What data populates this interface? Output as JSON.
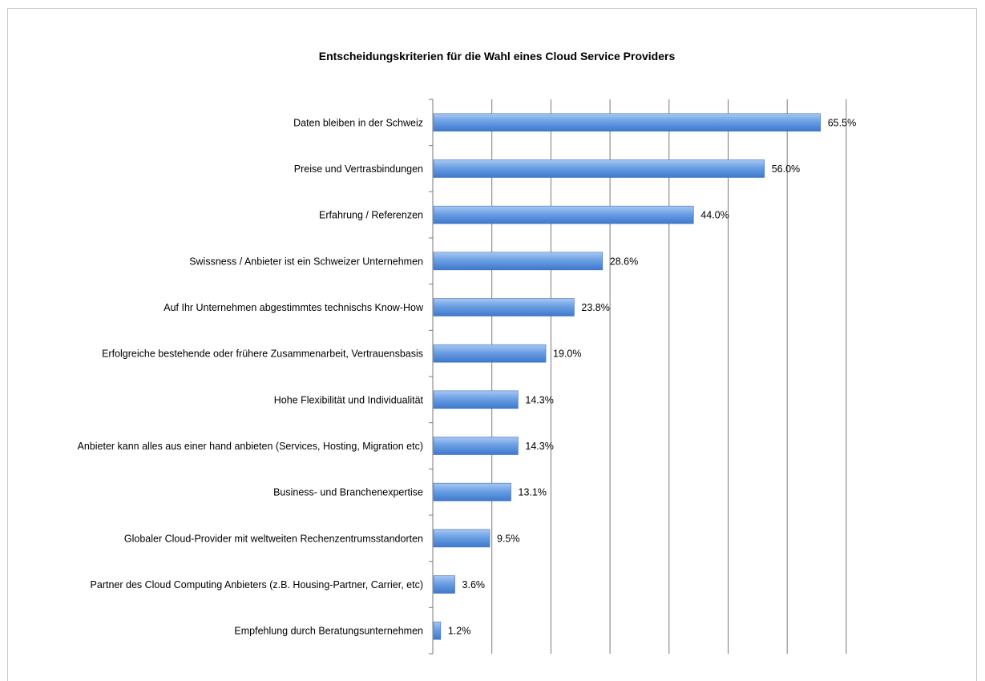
{
  "chart_data": {
    "type": "bar",
    "orientation": "horizontal",
    "title": "Entscheidungskriterien für die Wahl eines Cloud Service Providers",
    "xlabel": "",
    "ylabel": "",
    "xlim": [
      0,
      70
    ],
    "grid": true,
    "legend": "none",
    "bar_color": "#5b8fd6",
    "categories": [
      "Daten bleiben in der Schweiz",
      "Preise und Vertrasbindungen",
      "Erfahrung / Referenzen",
      "Swissness / Anbieter ist ein Schweizer Unternehmen",
      "Auf Ihr Unternehmen abgestimmtes technischs Know-How",
      "Erfolgreiche bestehende oder frühere Zusammenarbeit, Vertrauensbasis",
      "Hohe Flexibilität und Individualität",
      "Anbieter kann alles aus einer hand anbieten (Services, Hosting, Migration etc)",
      "Business- und Branchenexpertise",
      "Globaler Cloud-Provider mit weltweiten Rechenzentrumsstandorten",
      "Partner des Cloud Computing Anbieters (z.B. Housing-Partner, Carrier, etc)",
      "Empfehlung durch Beratungsunternehmen"
    ],
    "values": [
      65.5,
      56.0,
      44.0,
      28.6,
      23.8,
      19.0,
      14.3,
      14.3,
      13.1,
      9.5,
      3.6,
      1.2
    ],
    "value_labels": [
      "65.5%",
      "56.0%",
      "44.0%",
      "28.6%",
      "23.8%",
      "19.0%",
      "14.3%",
      "14.3%",
      "13.1%",
      "9.5%",
      "3.6%",
      "1.2%"
    ]
  }
}
